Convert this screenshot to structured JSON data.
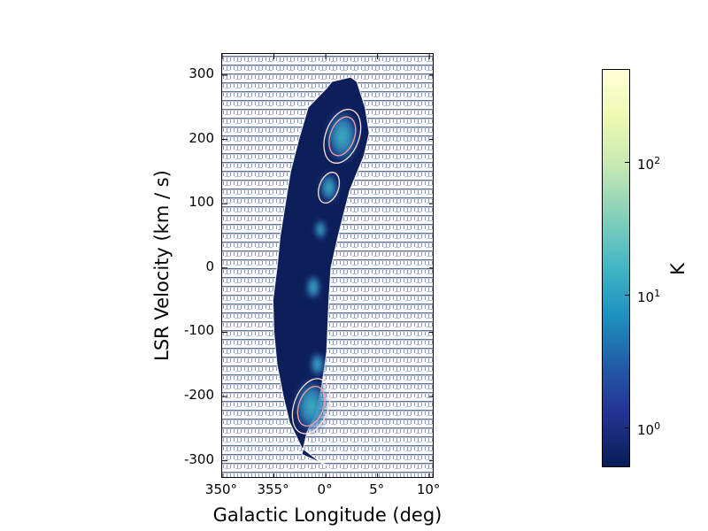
{
  "chart_data": {
    "type": "heatmap",
    "xlabel": "Galactic Longitude (deg)",
    "ylabel": "LSR Velocity (km / s)",
    "x_ticks": [
      {
        "value": 350,
        "label": "350°"
      },
      {
        "value": 355,
        "label": "355°"
      },
      {
        "value": 360,
        "label": "0°"
      },
      {
        "value": 365,
        "label": "5°"
      },
      {
        "value": 370,
        "label": "10°"
      }
    ],
    "y_ticks": [
      {
        "value": 300,
        "label": "300"
      },
      {
        "value": 200,
        "label": "200"
      },
      {
        "value": 100,
        "label": "100"
      },
      {
        "value": 0,
        "label": "0"
      },
      {
        "value": -100,
        "label": "-100"
      },
      {
        "value": -200,
        "label": "-200"
      },
      {
        "value": -300,
        "label": "-300"
      }
    ],
    "xlim": [
      350,
      370.5
    ],
    "ylim": [
      -328,
      333
    ],
    "colorbar": {
      "label": "K",
      "scale": "log",
      "range": [
        0.5,
        500
      ],
      "colormap": "YlGnBu",
      "ticks": [
        {
          "value": 1,
          "base": "10",
          "exp": "0"
        },
        {
          "value": 10,
          "base": "10",
          "exp": "1"
        },
        {
          "value": 100,
          "base": "10",
          "exp": "2"
        }
      ]
    },
    "emission_envelope": [
      [
        360.5,
        -310
      ],
      [
        359.3,
        -300
      ],
      [
        357.7,
        -280
      ],
      [
        356.5,
        -240
      ],
      [
        355.9,
        -200
      ],
      [
        355.3,
        -150
      ],
      [
        355.0,
        -100
      ],
      [
        354.9,
        -50
      ],
      [
        355.3,
        0
      ],
      [
        355.6,
        50
      ],
      [
        356.1,
        100
      ],
      [
        356.6,
        150
      ],
      [
        357.4,
        200
      ],
      [
        358.3,
        250
      ],
      [
        360.1,
        280
      ],
      [
        360.6,
        290
      ],
      [
        362.4,
        297
      ],
      [
        363.0,
        290
      ],
      [
        363.8,
        250
      ],
      [
        364.2,
        210
      ],
      [
        363.7,
        175
      ],
      [
        362.3,
        120
      ],
      [
        361.2,
        50
      ],
      [
        360.5,
        0
      ],
      [
        360.3,
        -50
      ],
      [
        360.1,
        -130
      ],
      [
        359.6,
        -185
      ],
      [
        359.1,
        -225
      ],
      [
        358.2,
        -255
      ],
      [
        357.7,
        -290
      ]
    ],
    "peaks": [
      {
        "l": 361.6,
        "v": 205,
        "T": 40
      },
      {
        "l": 358.6,
        "v": -215,
        "T": 45
      },
      {
        "l": 360.3,
        "v": 125,
        "T": 5
      },
      {
        "l": 359.5,
        "v": 60,
        "T": 2
      },
      {
        "l": 358.8,
        "v": -30,
        "T": 3
      },
      {
        "l": 359.2,
        "v": -150,
        "T": 3
      }
    ],
    "contour_levels": [
      5,
      20,
      60
    ]
  }
}
